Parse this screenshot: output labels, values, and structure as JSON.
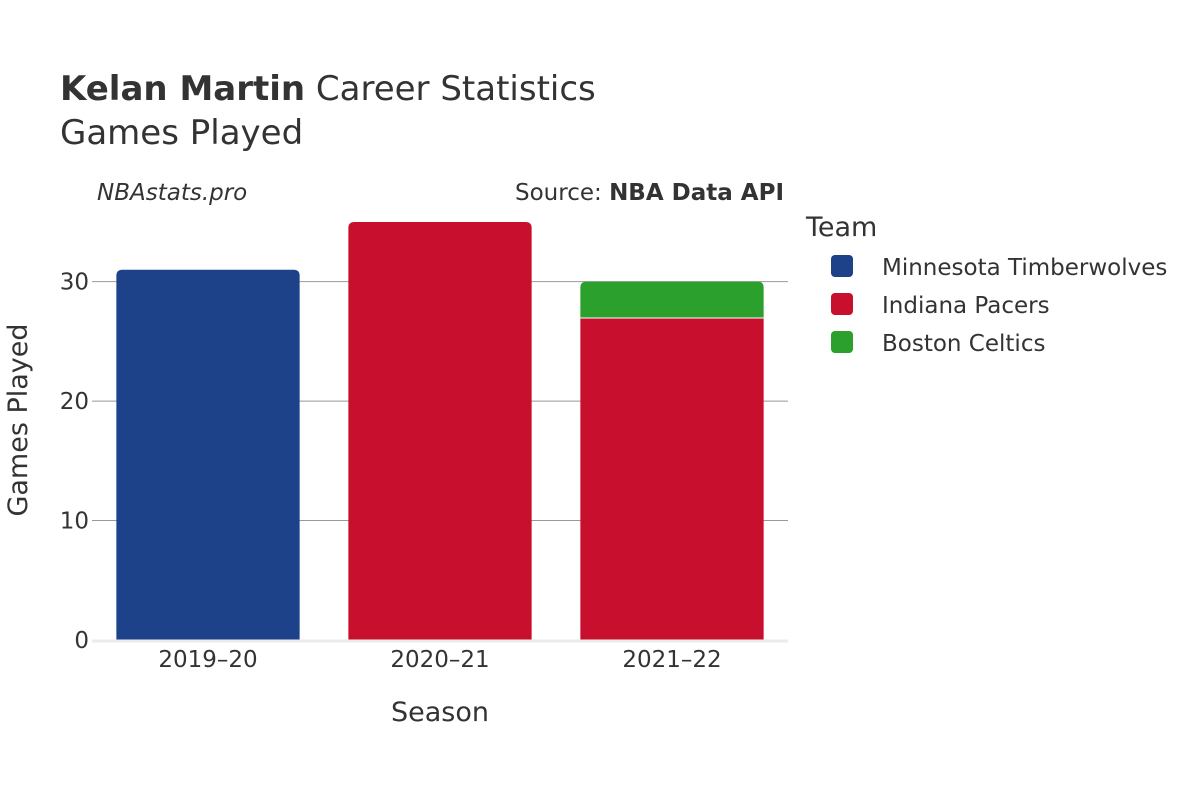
{
  "title": {
    "player": "Kelan Martin",
    "suffix": " Career Statistics",
    "subtitle": "Games Played"
  },
  "watermark": "NBAstats.pro",
  "source": {
    "prefix": "Source: ",
    "name": "NBA Data API"
  },
  "chart_data": {
    "type": "bar",
    "stacked": true,
    "categories": [
      "2019–20",
      "2020–21",
      "2021–22"
    ],
    "series": [
      {
        "name": "Minnesota Timberwolves",
        "color": "#1d428a",
        "values": [
          31,
          0,
          0
        ]
      },
      {
        "name": "Indiana Pacers",
        "color": "#c8102e",
        "values": [
          0,
          35,
          27
        ]
      },
      {
        "name": "Boston Celtics",
        "color": "#2ca02c",
        "values": [
          0,
          0,
          3
        ]
      }
    ],
    "xlabel": "Season",
    "ylabel": "Games Played",
    "ylim": [
      0,
      36
    ],
    "yticks": [
      0,
      10,
      20,
      30
    ],
    "grid": true,
    "legend": {
      "title": "Team",
      "position": "right"
    }
  }
}
